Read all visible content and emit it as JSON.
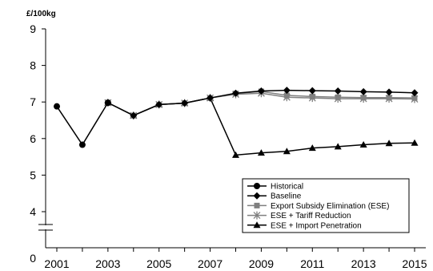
{
  "chart_data": {
    "type": "line",
    "title": "",
    "ylabel": "£/100kg",
    "xlabel": "",
    "x": [
      2001,
      2002,
      2003,
      2004,
      2005,
      2006,
      2007,
      2008,
      2009,
      2010,
      2011,
      2012,
      2013,
      2014,
      2015
    ],
    "x_tick_labels": [
      "2001",
      "2003",
      "2005",
      "2007",
      "2009",
      "2011",
      "2013",
      "2015"
    ],
    "y_tick_labels": [
      "0",
      "4",
      "5",
      "6",
      "7",
      "8",
      "9"
    ],
    "ylim": [
      3.5,
      9
    ],
    "y_axis_break": true,
    "legend_position": "bottom-right",
    "series": [
      {
        "name": "Historical",
        "color": "#000000",
        "marker": "circle",
        "values": [
          6.88,
          5.83,
          6.98,
          null,
          null,
          null,
          null,
          null,
          null,
          null,
          null,
          null,
          null,
          null,
          null
        ]
      },
      {
        "name": "Baseline",
        "color": "#000000",
        "marker": "diamond",
        "values": [
          null,
          null,
          6.98,
          6.63,
          6.93,
          6.97,
          7.11,
          7.24,
          7.3,
          7.32,
          7.31,
          7.3,
          7.28,
          7.27,
          7.25
        ]
      },
      {
        "name": "Export Subsidy Elimination (ESE)",
        "color": "#808080",
        "marker": "square",
        "values": [
          null,
          null,
          6.98,
          6.63,
          6.93,
          6.97,
          7.11,
          7.23,
          7.29,
          7.18,
          7.15,
          7.13,
          7.12,
          7.12,
          7.11
        ]
      },
      {
        "name": "ESE + Tariff Reduction",
        "color": "#808080",
        "marker": "star",
        "values": [
          null,
          null,
          6.98,
          6.63,
          6.93,
          6.97,
          7.11,
          7.21,
          7.24,
          7.13,
          7.11,
          7.09,
          7.09,
          7.09,
          7.08
        ]
      },
      {
        "name": "ESE + Import Penetration",
        "color": "#000000",
        "marker": "triangle",
        "values": [
          null,
          null,
          6.98,
          6.63,
          6.93,
          6.97,
          7.11,
          5.55,
          5.61,
          5.65,
          5.74,
          5.78,
          5.83,
          5.87,
          5.88
        ]
      }
    ]
  }
}
